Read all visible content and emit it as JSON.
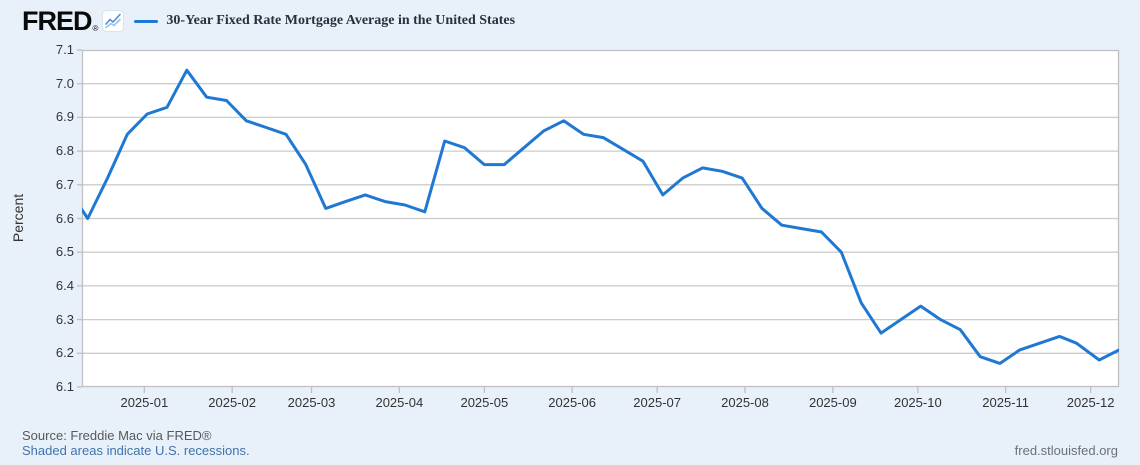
{
  "header": {
    "logo_text": "FRED",
    "logo_registered": "®",
    "legend_label": "30-Year Fixed Rate Mortgage Average in the United States"
  },
  "footer": {
    "source": "Source: Freddie Mac via FRED®",
    "recessions_note": "Shaded areas indicate U.S. recessions.",
    "site": "fred.stlouisfed.org"
  },
  "colors": {
    "series_line": "#1f78d2",
    "page_background": "#e8f1f9",
    "plot_background": "#ffffff",
    "gridline": "#cccccc",
    "plot_border": "#c0c0c0",
    "tick_text": "#333333",
    "link_blue": "#3f74ad"
  },
  "chart_data": {
    "type": "line",
    "title": "30-Year Fixed Rate Mortgage Average in the United States",
    "xlabel": "",
    "ylabel": "Percent",
    "ylim": [
      6.1,
      7.1
    ],
    "y_tick_labels": [
      "7.1",
      "7.0",
      "6.9",
      "6.8",
      "6.7",
      "6.6",
      "6.5",
      "6.4",
      "6.3",
      "6.2",
      "6.1"
    ],
    "x_tick_labels": [
      "2025-01",
      "2025-02",
      "2025-03",
      "2025-04",
      "2025-05",
      "2025-06",
      "2025-07",
      "2025-08",
      "2025-09",
      "2025-10",
      "2025-11",
      "2025-12"
    ],
    "x_range": [
      "2024-12-10",
      "2025-12-11"
    ],
    "grid": "horizontal",
    "legend_position": "top-left",
    "series": [
      {
        "name": "30-Year Fixed Rate Mortgage Average in the United States",
        "units": "Percent",
        "frequency": "weekly",
        "color": "#1f78d2",
        "dates": [
          "2024-12-05",
          "2024-12-12",
          "2024-12-19",
          "2024-12-26",
          "2025-01-02",
          "2025-01-09",
          "2025-01-16",
          "2025-01-23",
          "2025-01-30",
          "2025-02-06",
          "2025-02-13",
          "2025-02-20",
          "2025-02-27",
          "2025-03-06",
          "2025-03-13",
          "2025-03-20",
          "2025-03-27",
          "2025-04-03",
          "2025-04-10",
          "2025-04-17",
          "2025-04-24",
          "2025-05-01",
          "2025-05-08",
          "2025-05-15",
          "2025-05-22",
          "2025-05-29",
          "2025-06-05",
          "2025-06-12",
          "2025-06-18",
          "2025-06-26",
          "2025-07-03",
          "2025-07-10",
          "2025-07-17",
          "2025-07-24",
          "2025-07-31",
          "2025-08-07",
          "2025-08-14",
          "2025-08-21",
          "2025-08-28",
          "2025-09-04",
          "2025-09-11",
          "2025-09-18",
          "2025-09-25",
          "2025-10-02",
          "2025-10-09",
          "2025-10-16",
          "2025-10-23",
          "2025-10-30",
          "2025-11-06",
          "2025-11-13",
          "2025-11-20",
          "2025-11-26",
          "2025-12-04",
          "2025-12-11"
        ],
        "values": [
          6.69,
          6.6,
          6.72,
          6.85,
          6.91,
          6.93,
          7.04,
          6.96,
          6.95,
          6.89,
          6.87,
          6.85,
          6.76,
          6.63,
          6.65,
          6.67,
          6.65,
          6.64,
          6.62,
          6.83,
          6.81,
          6.76,
          6.76,
          6.81,
          6.86,
          6.89,
          6.85,
          6.84,
          6.81,
          6.77,
          6.67,
          6.72,
          6.75,
          6.74,
          6.72,
          6.63,
          6.58,
          6.57,
          6.56,
          6.5,
          6.35,
          6.26,
          6.3,
          6.34,
          6.3,
          6.27,
          6.19,
          6.17,
          6.21,
          6.23,
          6.25,
          6.23,
          6.18,
          6.21
        ]
      }
    ]
  }
}
